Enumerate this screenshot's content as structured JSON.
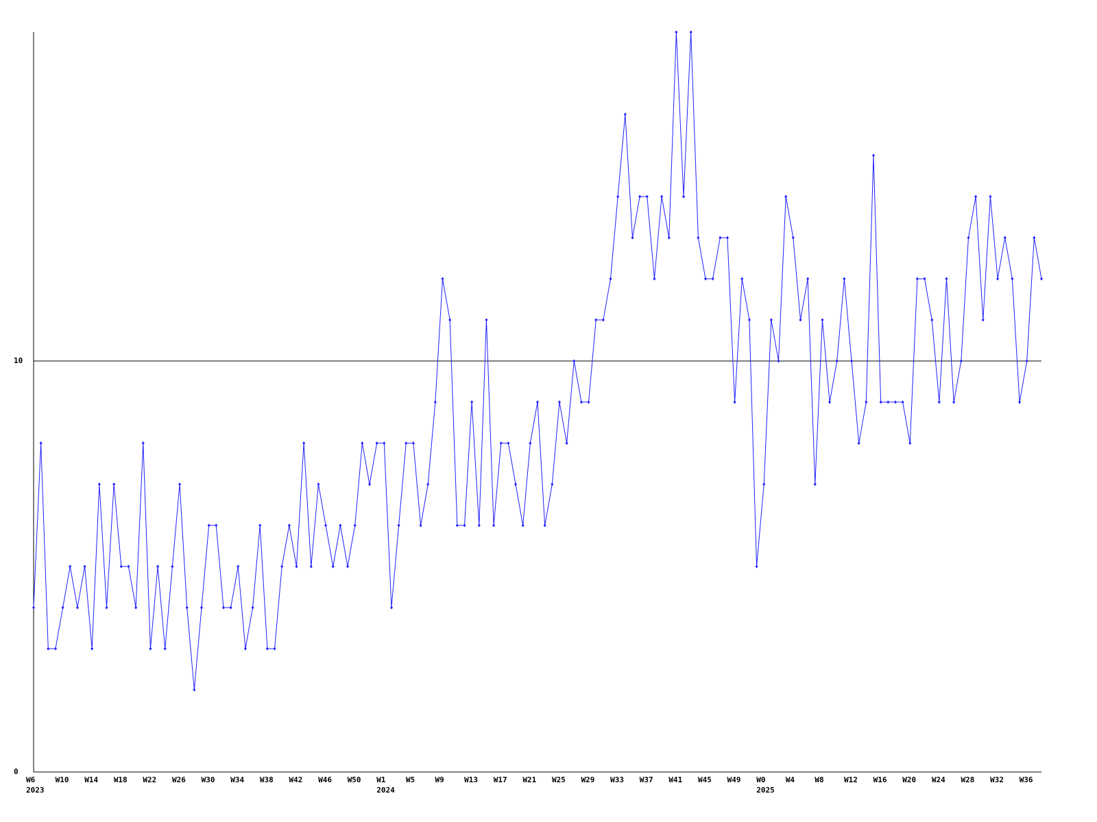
{
  "chart_data": {
    "type": "line",
    "categories": [
      "W6",
      null,
      null,
      null,
      "W10",
      null,
      null,
      null,
      "W14",
      null,
      null,
      null,
      "W18",
      null,
      null,
      null,
      "W22",
      null,
      null,
      null,
      "W26",
      null,
      null,
      null,
      "W30",
      null,
      null,
      null,
      "W34",
      null,
      null,
      null,
      "W38",
      null,
      null,
      null,
      "W42",
      null,
      null,
      null,
      "W46",
      null,
      null,
      null,
      "W50",
      null,
      null,
      null,
      "W1",
      null,
      null,
      null,
      "W5",
      null,
      null,
      null,
      "W9",
      null,
      null,
      null,
      "W13",
      null,
      null,
      null,
      "W17",
      null,
      null,
      null,
      "W21",
      null,
      null,
      null,
      "W25",
      null,
      null,
      null,
      "W29",
      null,
      null,
      null,
      "W33",
      null,
      null,
      null,
      "W37",
      null,
      null,
      null,
      "W41",
      null,
      null,
      null,
      "W45",
      null,
      null,
      null,
      "W49",
      null,
      null,
      null,
      "W0",
      null,
      null,
      null,
      "W4",
      null,
      null,
      null,
      "W8",
      null,
      null,
      null,
      "W12",
      null,
      null,
      null,
      "W16",
      null,
      null,
      null,
      "W20",
      null,
      null,
      null,
      "W24",
      null,
      null,
      null,
      "W28",
      null,
      null,
      null,
      "W32",
      null,
      null,
      null,
      "W36",
      null,
      null
    ],
    "years": [
      "2023",
      null,
      null,
      null,
      null,
      null,
      null,
      null,
      null,
      null,
      null,
      null,
      null,
      null,
      null,
      null,
      null,
      null,
      null,
      null,
      null,
      null,
      null,
      null,
      null,
      null,
      null,
      null,
      null,
      null,
      null,
      null,
      null,
      null,
      null,
      null,
      null,
      null,
      null,
      null,
      null,
      null,
      null,
      null,
      null,
      null,
      null,
      null,
      "2024",
      null,
      null,
      null,
      null,
      null,
      null,
      null,
      null,
      null,
      null,
      null,
      null,
      null,
      null,
      null,
      null,
      null,
      null,
      null,
      null,
      null,
      null,
      null,
      null,
      null,
      null,
      null,
      null,
      null,
      null,
      null,
      null,
      null,
      null,
      null,
      null,
      null,
      null,
      null,
      null,
      null,
      null,
      null,
      null,
      null,
      null,
      null,
      null,
      null,
      null,
      null,
      "2025",
      null,
      null,
      null,
      null,
      null,
      null,
      null,
      null,
      null,
      null,
      null,
      null,
      null,
      null,
      null,
      null,
      null,
      null,
      null,
      null,
      null,
      null,
      null,
      null,
      null,
      null,
      null,
      null,
      null,
      null,
      null,
      null,
      null,
      null,
      null,
      null,
      null,
      null
    ],
    "values": [
      4,
      8,
      3,
      3,
      4,
      5,
      4,
      5,
      3,
      7,
      4,
      7,
      5,
      5,
      4,
      8,
      3,
      5,
      3,
      5,
      7,
      4,
      2,
      4,
      6,
      6,
      4,
      4,
      5,
      3,
      4,
      6,
      3,
      3,
      5,
      6,
      5,
      8,
      5,
      7,
      6,
      5,
      6,
      5,
      6,
      8,
      7,
      8,
      8,
      4,
      6,
      8,
      8,
      6,
      7,
      9,
      12,
      11,
      6,
      6,
      9,
      6,
      11,
      6,
      8,
      8,
      7,
      6,
      8,
      9,
      6,
      7,
      9,
      8,
      10,
      9,
      9,
      11,
      11,
      12,
      14,
      16,
      13,
      14,
      14,
      12,
      14,
      13,
      18,
      14,
      18,
      13,
      12,
      12,
      13,
      13,
      9,
      12,
      11,
      5,
      7,
      11,
      10,
      14,
      13,
      11,
      12,
      7,
      11,
      9,
      10,
      12,
      10,
      8,
      9,
      15,
      9,
      9,
      9,
      9,
      8,
      12,
      12,
      11,
      9,
      12,
      9,
      10,
      13,
      14,
      11,
      14,
      12,
      13,
      12,
      9,
      10,
      13,
      12
    ],
    "color": "#2020ff",
    "ylim": [
      0,
      18
    ],
    "yticks": [
      0,
      10
    ],
    "grid": true
  }
}
